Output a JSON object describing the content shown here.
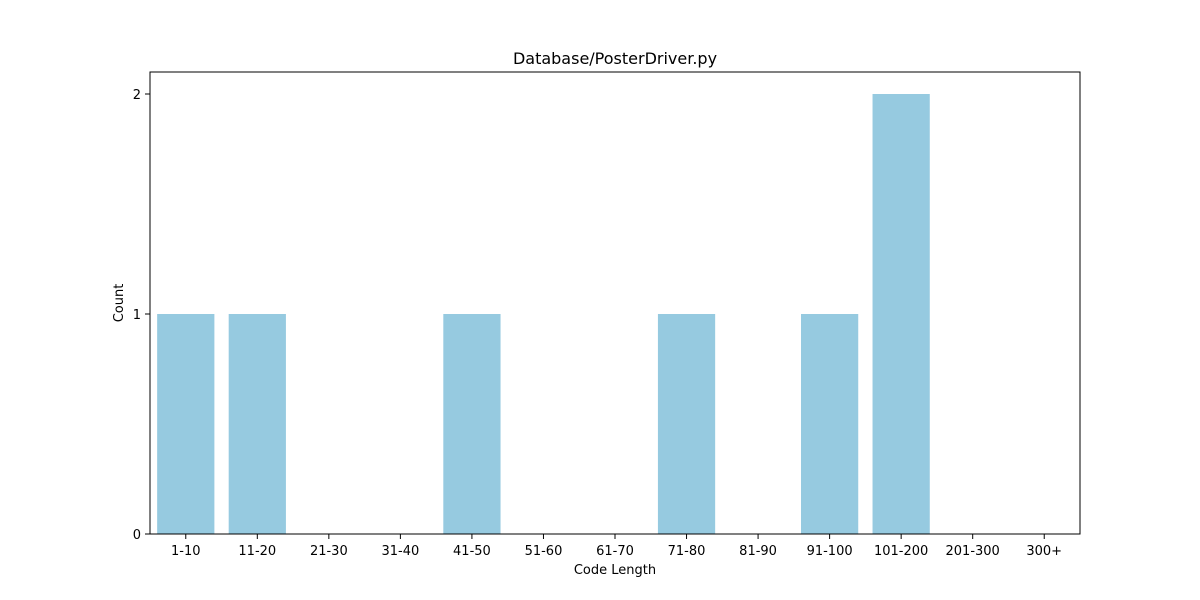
{
  "chart_data": {
    "type": "bar",
    "title": "Database/PosterDriver.py",
    "xlabel": "Code Length",
    "ylabel": "Count",
    "categories": [
      "1-10",
      "11-20",
      "21-30",
      "31-40",
      "41-50",
      "51-60",
      "61-70",
      "71-80",
      "81-90",
      "91-100",
      "101-200",
      "201-300",
      "300+"
    ],
    "values": [
      1,
      1,
      0,
      0,
      1,
      0,
      0,
      1,
      0,
      1,
      2,
      0,
      0
    ],
    "yticks": [
      0,
      1,
      2
    ],
    "ylim": [
      0,
      2.1
    ],
    "grid": false,
    "legend": "none",
    "bar_color": "#96CAE0"
  }
}
